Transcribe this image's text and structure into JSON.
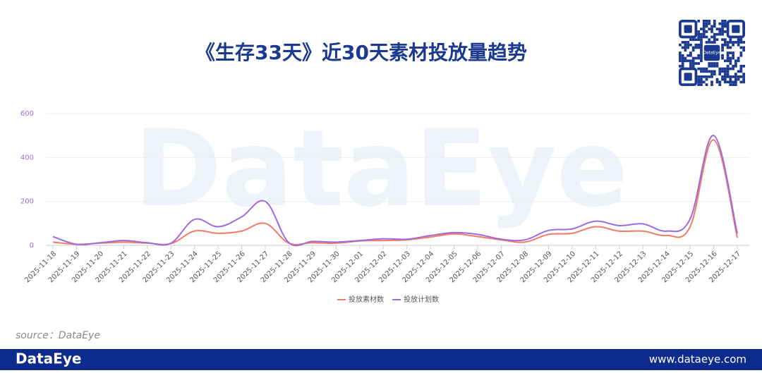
{
  "chart_data": {
    "type": "line",
    "title": "《生存33天》近30天素材投放量趋势",
    "x": [
      "2025-11-18",
      "2025-11-19",
      "2025-11-20",
      "2025-11-21",
      "2025-11-22",
      "2025-11-23",
      "2025-11-24",
      "2025-11-25",
      "2025-11-26",
      "2025-11-27",
      "2025-11-28",
      "2025-11-29",
      "2025-11-30",
      "2025-12-01",
      "2025-12-02",
      "2025-12-03",
      "2025-12-04",
      "2025-12-05",
      "2025-12-06",
      "2025-12-07",
      "2025-12-08",
      "2025-12-09",
      "2025-12-10",
      "2025-12-11",
      "2025-12-12",
      "2025-12-13",
      "2025-12-14",
      "2025-12-15",
      "2025-12-16",
      "2025-12-17"
    ],
    "series": [
      {
        "name": "投放素材数",
        "color": "#f47a66",
        "values": [
          15,
          5,
          10,
          15,
          10,
          8,
          65,
          55,
          65,
          100,
          10,
          12,
          10,
          20,
          22,
          25,
          38,
          52,
          40,
          25,
          15,
          50,
          55,
          85,
          65,
          65,
          45,
          85,
          480,
          35
        ]
      },
      {
        "name": "投放计划数",
        "color": "#9b6be0",
        "values": [
          40,
          5,
          12,
          22,
          12,
          10,
          118,
          85,
          130,
          200,
          12,
          18,
          15,
          22,
          30,
          28,
          45,
          58,
          50,
          28,
          25,
          68,
          75,
          110,
          90,
          98,
          65,
          120,
          500,
          55
        ]
      }
    ],
    "ylim": [
      0,
      600
    ],
    "yticks": [
      0,
      200,
      400,
      600
    ],
    "grid": true,
    "legend": "bottom"
  },
  "watermark": "DataEye",
  "qr_label": "DataEye",
  "source": "source：DataEye",
  "footer": {
    "brand": "DataEye",
    "url": "www.dataeye.com"
  }
}
